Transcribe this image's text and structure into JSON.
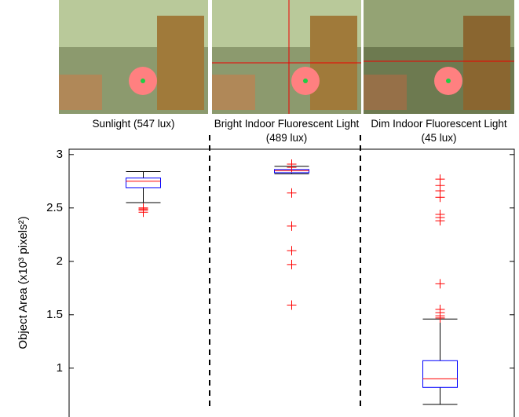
{
  "chart_data": {
    "type": "box",
    "y_label": "Object Area (x10³ pixels²)",
    "categories": [
      "Sunlight (547 lux)",
      "Bright Indoor Fluorescent Light (489 lux)",
      "Dim Indoor Fluorescent Light (45 lux)"
    ],
    "boxes": [
      {
        "whisker_high": 2.84,
        "q3": 2.78,
        "median": 2.75,
        "q1": 2.69,
        "whisker_low": 2.55,
        "outliers": [
          2.5,
          2.49,
          2.48,
          2.46
        ],
        "color": "#0000ff"
      },
      {
        "whisker_high": 2.89,
        "q3": 2.86,
        "median": 2.85,
        "q1": 2.83,
        "whisker_low": 2.82,
        "outliers": [
          2.91,
          2.88,
          2.64,
          2.33,
          2.1,
          1.97,
          1.59
        ],
        "color": "#0000ff"
      },
      {
        "whisker_high": 1.46,
        "q3": 1.07,
        "median": 0.9,
        "q1": 0.82,
        "whisker_low": 0.66,
        "outliers": [
          2.77,
          2.71,
          2.66,
          2.6,
          2.44,
          2.41,
          2.38,
          1.79,
          1.55,
          1.52,
          1.49,
          1.47
        ],
        "color": "#0000ff"
      }
    ],
    "median_color": "#ff0000",
    "outlier_color": "#ff0000",
    "ylim": [
      0.55,
      3.05
    ],
    "yticks": [
      1,
      1.5,
      2,
      2.5,
      3
    ]
  }
}
